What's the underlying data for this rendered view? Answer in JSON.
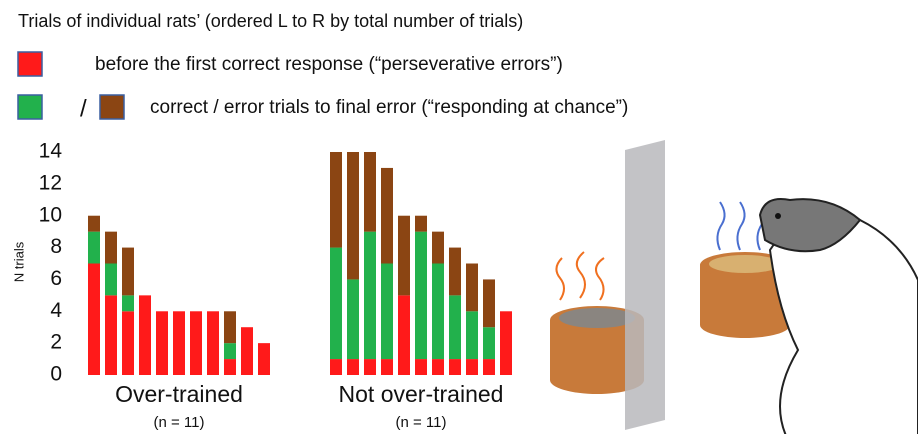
{
  "chart_data": {
    "type": "grouped-stacked-bar",
    "title": "Trials of individual rats’ (ordered L to R by total number of trials)",
    "legend": [
      {
        "label": "before the first correct response (“perseverative errors”)"
      },
      {
        "separator": "/",
        "label": "correct / error trials to final error (“responding at chance”)"
      }
    ],
    "ylabel": "N trials",
    "ylim": [
      0,
      14
    ],
    "yticks": [
      0,
      2,
      4,
      6,
      8,
      10,
      12,
      14
    ],
    "groups": [
      {
        "label": "Over-trained",
        "n_label": "(n = 11)",
        "series": [
          {
            "color": "#ff1a1a",
            "values": [
              7,
              5,
              4,
              5,
              4,
              4,
              4,
              4,
              1,
              3,
              2
            ]
          },
          {
            "color": "#22b14c",
            "values": [
              2,
              2,
              1,
              0,
              0,
              0,
              0,
              0,
              1,
              0,
              0
            ]
          },
          {
            "color": "#8b4513",
            "values": [
              1,
              2,
              3,
              0,
              0,
              0,
              0,
              0,
              2,
              0,
              0
            ]
          }
        ]
      },
      {
        "label": "Not over-trained",
        "n_label": "(n = 11)",
        "series": [
          {
            "color": "#ff1a1a",
            "values": [
              1,
              1,
              1,
              1,
              5,
              1,
              1,
              1,
              1,
              1,
              4
            ]
          },
          {
            "color": "#22b14c",
            "values": [
              7,
              5,
              8,
              6,
              0,
              8,
              6,
              4,
              3,
              2,
              0
            ]
          },
          {
            "color": "#8b4513",
            "values": [
              6,
              8,
              5,
              6,
              5,
              1,
              2,
              3,
              3,
              3,
              0
            ]
          }
        ]
      }
    ]
  }
}
